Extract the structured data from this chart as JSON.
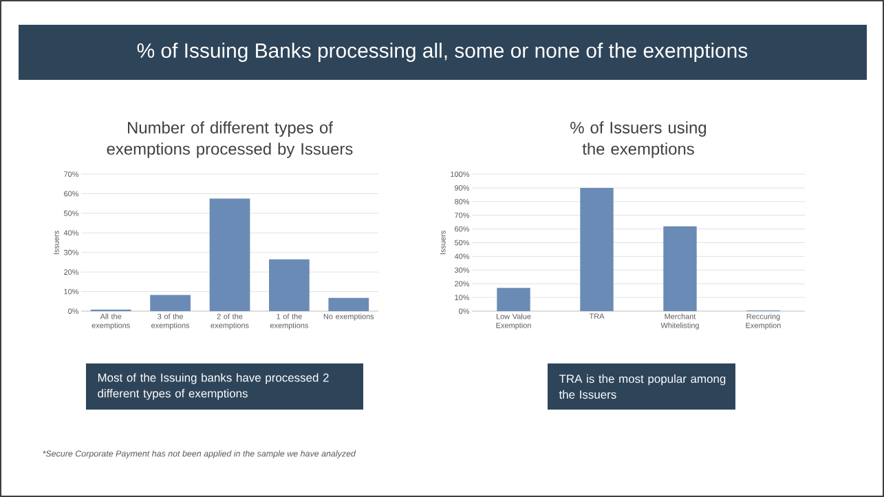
{
  "chart_data": [
    {
      "type": "other",
      "title": "% of Issuing Banks processing all, some or none of the exemptions",
      "annotations": [
        "*Secure Corporate Payment has not been applied in the sample we have analyzed"
      ]
    },
    {
      "type": "bar",
      "title": "Number of different types of exemptions processed by Issuers",
      "ylabel": "Issuers",
      "categories": [
        "All the exemptions",
        "3 of the exemptions",
        "2 of the exemptions",
        "1 of the exemptions",
        "No exemptions"
      ],
      "values": [
        0.8,
        8.3,
        57.5,
        26.5,
        6.8
      ],
      "color": "#6a8bb5",
      "ylim": [
        0,
        70
      ],
      "yticks": [
        {
          "value": 0,
          "label": "0%"
        },
        {
          "value": 10,
          "label": "10%"
        },
        {
          "value": 20,
          "label": "20%"
        },
        {
          "value": 30,
          "label": "30%"
        },
        {
          "value": 40,
          "label": "40%"
        },
        {
          "value": 50,
          "label": "50%"
        },
        {
          "value": 60,
          "label": "60%"
        },
        {
          "value": 70,
          "label": "70%"
        }
      ],
      "grid": "y",
      "annotations": [
        "Most of the Issuing banks have processed 2 different types of exemptions"
      ]
    },
    {
      "type": "bar",
      "title": "% of Issuers using the exemptions",
      "ylabel": "Issuers",
      "categories": [
        "Low Value Exemption",
        "TRA",
        "Merchant Whitelisting",
        "Reccuring Exemption"
      ],
      "values": [
        17,
        90,
        62,
        0.5
      ],
      "color": "#6a8bb5",
      "ylim": [
        0,
        100
      ],
      "yticks": [
        {
          "value": 0,
          "label": "0%"
        },
        {
          "value": 10,
          "label": "10%"
        },
        {
          "value": 20,
          "label": "20%"
        },
        {
          "value": 30,
          "label": "30%"
        },
        {
          "value": 40,
          "label": "40%"
        },
        {
          "value": 50,
          "label": "50%"
        },
        {
          "value": 60,
          "label": "60%"
        },
        {
          "value": 70,
          "label": "70%"
        },
        {
          "value": 80,
          "label": "80%"
        },
        {
          "value": 90,
          "label": "90%"
        },
        {
          "value": 100,
          "label": "100%"
        }
      ],
      "grid": "y",
      "annotations": [
        "TRA is the most popular among the Issuers"
      ]
    }
  ]
}
